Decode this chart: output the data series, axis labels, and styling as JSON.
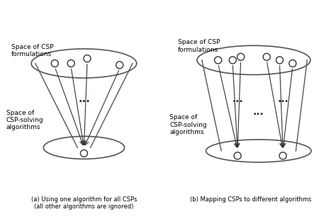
{
  "fig_width": 4.74,
  "fig_height": 3.16,
  "dpi": 100,
  "bg_color": "#ffffff",
  "line_color": "#555555",
  "caption_a": "(a) Using one algorithm for all CSPs\n(all other algorithms are ignored)",
  "caption_b": "(b) Mapping CSPs to different algorithms",
  "label_csp_formulations": "Space of CSP\nformulations",
  "label_csp_algorithms": "Space of\nCSP-solving\nalgorithms",
  "dots": "..."
}
